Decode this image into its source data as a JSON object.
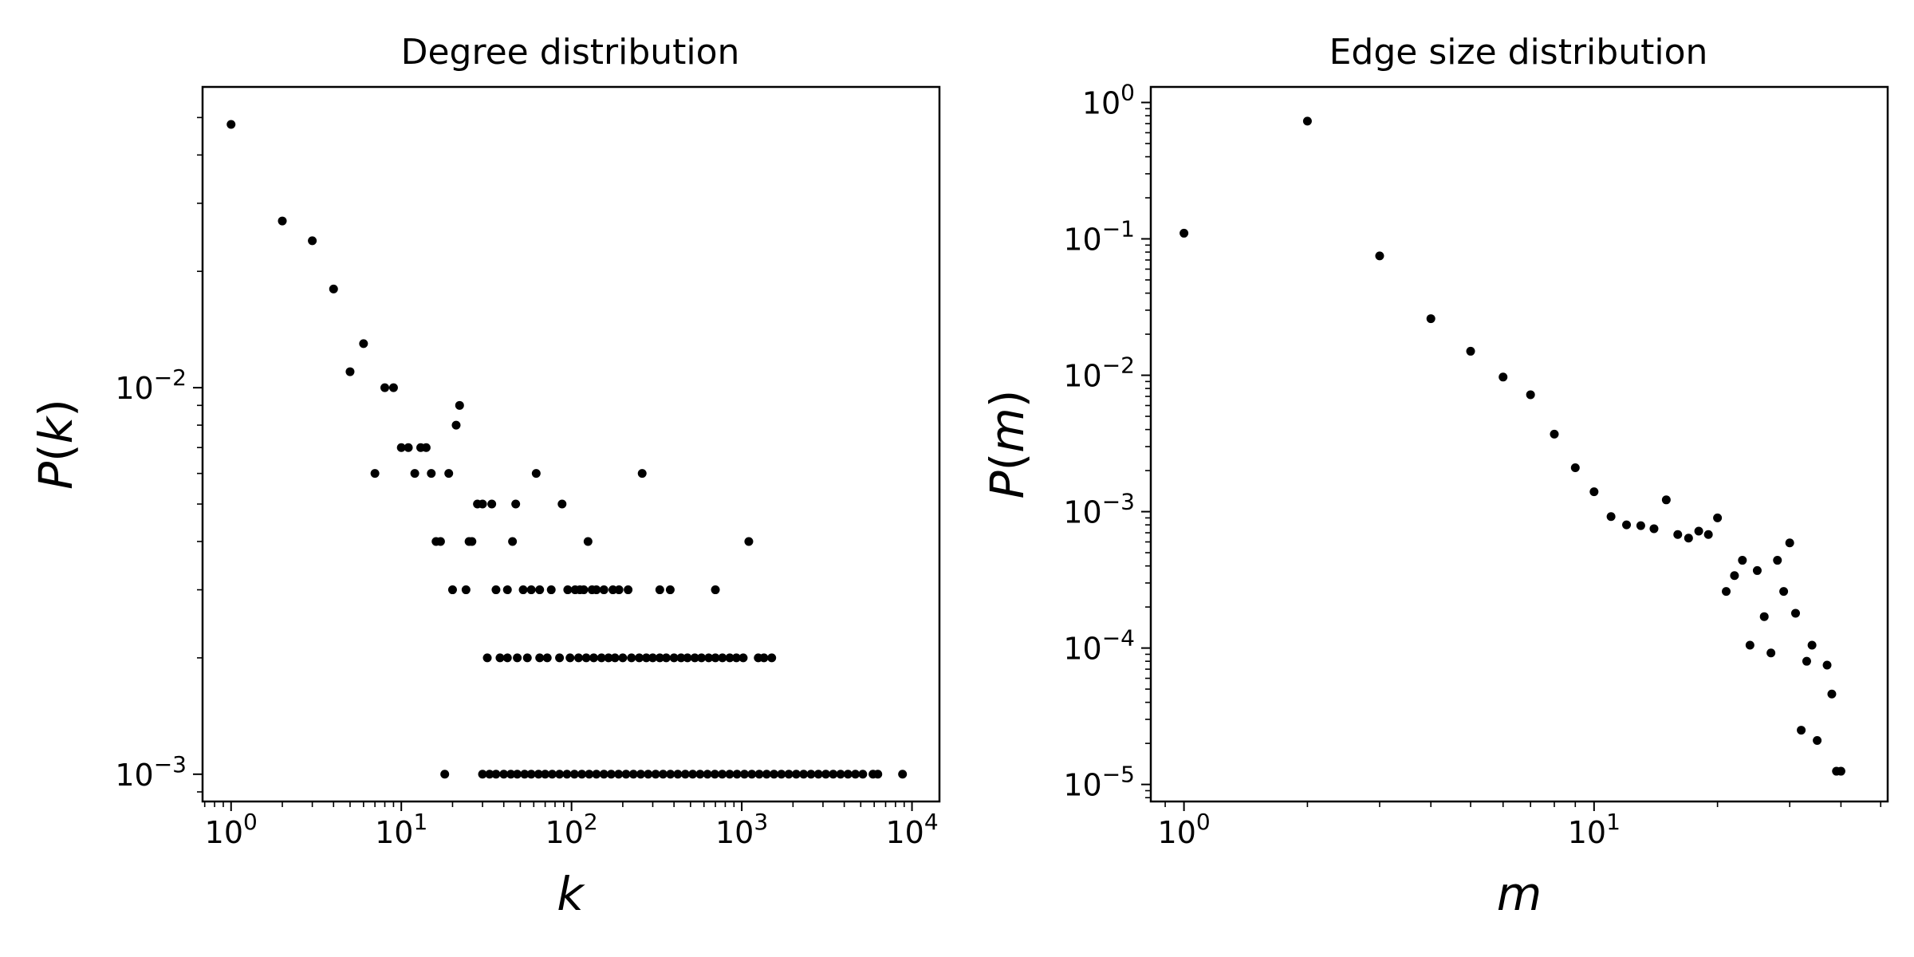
{
  "figure_title": "",
  "chart_data": [
    {
      "type": "scatter",
      "title": "Degree distribution",
      "xlabel_var": "k",
      "ylabel_func": "P",
      "ylabel_var": "k",
      "xscale": "log",
      "yscale": "log",
      "xlim": [
        0.68,
        14500
      ],
      "ylim": [
        0.00085,
        0.06
      ],
      "grid": false,
      "marker_color": "#000000",
      "xticks": [
        {
          "base": "10",
          "exp": "0",
          "value": 1
        },
        {
          "base": "10",
          "exp": "1",
          "value": 10
        },
        {
          "base": "10",
          "exp": "2",
          "value": 100
        },
        {
          "base": "10",
          "exp": "3",
          "value": 1000
        },
        {
          "base": "10",
          "exp": "4",
          "value": 10000
        }
      ],
      "yticks": [
        {
          "base": "10",
          "exp": "−2",
          "value": 0.01
        },
        {
          "base": "10",
          "exp": "−3",
          "value": 0.001
        }
      ],
      "points": [
        [
          1,
          0.048
        ],
        [
          2,
          0.027
        ],
        [
          3,
          0.024
        ],
        [
          4,
          0.018
        ],
        [
          5,
          0.011
        ],
        [
          6,
          0.013
        ],
        [
          7,
          0.006
        ],
        [
          8,
          0.01
        ],
        [
          9,
          0.01
        ],
        [
          10,
          0.007
        ],
        [
          11,
          0.007
        ],
        [
          12,
          0.006
        ],
        [
          13,
          0.007
        ],
        [
          14,
          0.007
        ],
        [
          15,
          0.006
        ],
        [
          16,
          0.004
        ],
        [
          17,
          0.004
        ],
        [
          19,
          0.006
        ],
        [
          20,
          0.003
        ],
        [
          21,
          0.008
        ],
        [
          22,
          0.009
        ],
        [
          24,
          0.003
        ],
        [
          25,
          0.004
        ],
        [
          26,
          0.004
        ],
        [
          28,
          0.005
        ],
        [
          30,
          0.005
        ],
        [
          34,
          0.005
        ],
        [
          36,
          0.003
        ],
        [
          42,
          0.003
        ],
        [
          45,
          0.004
        ],
        [
          47,
          0.005
        ],
        [
          52,
          0.003
        ],
        [
          58,
          0.003
        ],
        [
          62,
          0.006
        ],
        [
          65,
          0.003
        ],
        [
          76,
          0.003
        ],
        [
          88,
          0.005
        ],
        [
          95,
          0.003
        ],
        [
          105,
          0.003
        ],
        [
          112,
          0.003
        ],
        [
          118,
          0.003
        ],
        [
          125,
          0.004
        ],
        [
          132,
          0.003
        ],
        [
          140,
          0.003
        ],
        [
          155,
          0.003
        ],
        [
          175,
          0.003
        ],
        [
          190,
          0.003
        ],
        [
          215,
          0.003
        ],
        [
          260,
          0.006
        ],
        [
          330,
          0.003
        ],
        [
          380,
          0.003
        ],
        [
          700,
          0.003
        ],
        [
          1100,
          0.004
        ],
        [
          32,
          0.002
        ],
        [
          38,
          0.002
        ],
        [
          42,
          0.002
        ],
        [
          48,
          0.002
        ],
        [
          55,
          0.002
        ],
        [
          65,
          0.002
        ],
        [
          72,
          0.002
        ],
        [
          85,
          0.002
        ],
        [
          98,
          0.002
        ],
        [
          110,
          0.002
        ],
        [
          122,
          0.002
        ],
        [
          135,
          0.002
        ],
        [
          150,
          0.002
        ],
        [
          165,
          0.002
        ],
        [
          180,
          0.002
        ],
        [
          200,
          0.002
        ],
        [
          225,
          0.002
        ],
        [
          250,
          0.002
        ],
        [
          275,
          0.002
        ],
        [
          300,
          0.002
        ],
        [
          330,
          0.002
        ],
        [
          360,
          0.002
        ],
        [
          400,
          0.002
        ],
        [
          440,
          0.002
        ],
        [
          480,
          0.002
        ],
        [
          530,
          0.002
        ],
        [
          580,
          0.002
        ],
        [
          640,
          0.002
        ],
        [
          700,
          0.002
        ],
        [
          770,
          0.002
        ],
        [
          850,
          0.002
        ],
        [
          930,
          0.002
        ],
        [
          1020,
          0.002
        ],
        [
          1250,
          0.002
        ],
        [
          1350,
          0.002
        ],
        [
          1500,
          0.002
        ],
        [
          18,
          0.001
        ],
        [
          30,
          0.001
        ],
        [
          33,
          0.001
        ],
        [
          36,
          0.001
        ],
        [
          40,
          0.001
        ],
        [
          44,
          0.001
        ],
        [
          48,
          0.001
        ],
        [
          53,
          0.001
        ],
        [
          58,
          0.001
        ],
        [
          64,
          0.001
        ],
        [
          70,
          0.001
        ],
        [
          77,
          0.001
        ],
        [
          85,
          0.001
        ],
        [
          94,
          0.001
        ],
        [
          104,
          0.001
        ],
        [
          115,
          0.001
        ],
        [
          127,
          0.001
        ],
        [
          140,
          0.001
        ],
        [
          155,
          0.001
        ],
        [
          171,
          0.001
        ],
        [
          189,
          0.001
        ],
        [
          209,
          0.001
        ],
        [
          231,
          0.001
        ],
        [
          255,
          0.001
        ],
        [
          282,
          0.001
        ],
        [
          312,
          0.001
        ],
        [
          345,
          0.001
        ],
        [
          381,
          0.001
        ],
        [
          421,
          0.001
        ],
        [
          466,
          0.001
        ],
        [
          515,
          0.001
        ],
        [
          569,
          0.001
        ],
        [
          629,
          0.001
        ],
        [
          695,
          0.001
        ],
        [
          768,
          0.001
        ],
        [
          849,
          0.001
        ],
        [
          938,
          0.001
        ],
        [
          1037,
          0.001
        ],
        [
          1146,
          0.001
        ],
        [
          1267,
          0.001
        ],
        [
          1400,
          0.001
        ],
        [
          1547,
          0.001
        ],
        [
          1710,
          0.001
        ],
        [
          1890,
          0.001
        ],
        [
          2089,
          0.001
        ],
        [
          2309,
          0.001
        ],
        [
          2552,
          0.001
        ],
        [
          2820,
          0.001
        ],
        [
          3117,
          0.001
        ],
        [
          3445,
          0.001
        ],
        [
          3807,
          0.001
        ],
        [
          4208,
          0.001
        ],
        [
          4651,
          0.001
        ],
        [
          5140,
          0.001
        ],
        [
          5900,
          0.001
        ],
        [
          6300,
          0.001
        ],
        [
          8800,
          0.001
        ]
      ]
    },
    {
      "type": "scatter",
      "title": "Edge size distribution",
      "xlabel_var": "m",
      "ylabel_func": "P",
      "ylabel_var": "m",
      "xscale": "log",
      "yscale": "log",
      "xlim": [
        0.83,
        52
      ],
      "ylim": [
        7.5e-06,
        1.3
      ],
      "grid": false,
      "marker_color": "#000000",
      "xticks": [
        {
          "base": "10",
          "exp": "0",
          "value": 1
        },
        {
          "base": "10",
          "exp": "1",
          "value": 10
        }
      ],
      "yticks": [
        {
          "base": "10",
          "exp": "0",
          "value": 1
        },
        {
          "base": "10",
          "exp": "−1",
          "value": 0.1
        },
        {
          "base": "10",
          "exp": "−2",
          "value": 0.01
        },
        {
          "base": "10",
          "exp": "−3",
          "value": 0.001
        },
        {
          "base": "10",
          "exp": "−4",
          "value": 0.0001
        },
        {
          "base": "10",
          "exp": "−5",
          "value": 1e-05
        }
      ],
      "points": [
        [
          1,
          0.11
        ],
        [
          2,
          0.73
        ],
        [
          3,
          0.075
        ],
        [
          4,
          0.026
        ],
        [
          5,
          0.015
        ],
        [
          6,
          0.0097
        ],
        [
          7,
          0.0072
        ],
        [
          8,
          0.0037
        ],
        [
          9,
          0.0021
        ],
        [
          10,
          0.0014
        ],
        [
          11,
          0.00092
        ],
        [
          12,
          0.0008
        ],
        [
          13,
          0.00079
        ],
        [
          14,
          0.00075
        ],
        [
          15,
          0.00122
        ],
        [
          16,
          0.00068
        ],
        [
          17,
          0.00064
        ],
        [
          18,
          0.00072
        ],
        [
          19,
          0.00068
        ],
        [
          20,
          0.0009
        ],
        [
          21,
          0.00026
        ],
        [
          22,
          0.00034
        ],
        [
          23,
          0.00044
        ],
        [
          24,
          0.000105
        ],
        [
          25,
          0.00037
        ],
        [
          26,
          0.00017
        ],
        [
          27,
          9.2e-05
        ],
        [
          28,
          0.00044
        ],
        [
          29,
          0.00026
        ],
        [
          30,
          0.00059
        ],
        [
          31,
          0.00018
        ],
        [
          32,
          2.5e-05
        ],
        [
          33,
          8e-05
        ],
        [
          34,
          0.000105
        ],
        [
          35,
          2.1e-05
        ],
        [
          37,
          7.5e-05
        ],
        [
          38,
          4.6e-05
        ],
        [
          39,
          1.25e-05
        ],
        [
          40,
          1.25e-05
        ]
      ]
    }
  ]
}
